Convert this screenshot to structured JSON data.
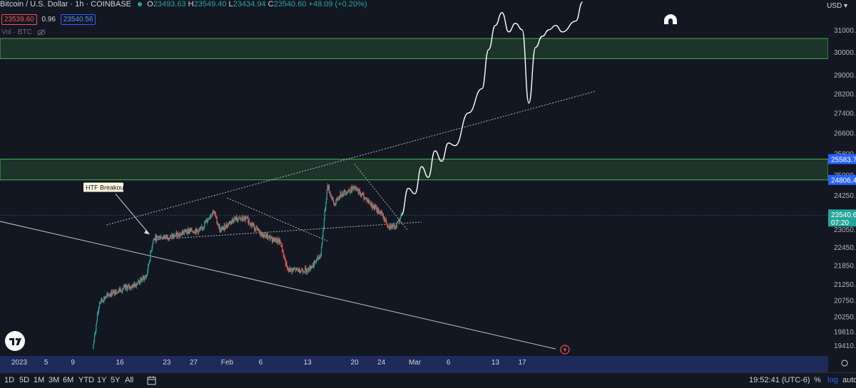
{
  "header": {
    "title": "Bitcoin / U.S. Dollar · 1h · COINBASE",
    "ohlc": [
      {
        "k": "O",
        "v": "23493.63"
      },
      {
        "k": "H",
        "v": "23549.40"
      },
      {
        "k": "L",
        "v": "23434.94"
      },
      {
        "k": "C",
        "v": "23540.60"
      }
    ],
    "change": "+48.09 (+0.20%)",
    "sell_price": "23539.60",
    "spread": "0.96",
    "buy_price": "23540.56",
    "volume_label": "Vol · BTC",
    "currency": "USD"
  },
  "colors": {
    "background": "#131722",
    "up": "#26a69a",
    "down": "#ef5350",
    "zone_fill": "#1e3a2b",
    "zone_border": "#4caf50",
    "axis_bar": "#1e2a5a",
    "price_marker": "#2962ff"
  },
  "chart_data": {
    "type": "line",
    "title": "Bitcoin / U.S. Dollar · 1h · COINBASE",
    "xlabel": "",
    "ylabel": "",
    "x_tick_labels": [
      "2023",
      "5",
      "9",
      "16",
      "23",
      "27",
      "Feb",
      "6",
      "13",
      "20",
      "24",
      "Mar",
      "6",
      "13",
      "17"
    ],
    "y_ticks": [
      31000,
      30000,
      29000,
      28200,
      27400,
      26600,
      25800,
      25000,
      24250,
      23050,
      22450,
      21850,
      21250,
      20750,
      20250,
      19810,
      19410
    ],
    "y_tick_labels": [
      "31000.00",
      "30000.00",
      "29000.00",
      "28200.00",
      "27400.00",
      "26600.00",
      "25800.00",
      "25000.00",
      "24250.00",
      "23050.00",
      "22450.00",
      "21850.00",
      "21250.00",
      "20750.00",
      "20250.00",
      "19810.00",
      "19410.00"
    ],
    "ylim": [
      19100,
      32400
    ],
    "log_scale": true,
    "grid": false,
    "price_labels": [
      {
        "value": 25583.74,
        "text": "25583.74",
        "kind": "zone"
      },
      {
        "value": 24806.47,
        "text": "24806.47",
        "kind": "zone"
      },
      {
        "value": 23540.6,
        "text": "23540.60",
        "kind": "last",
        "countdown": "07:20"
      }
    ],
    "zones": [
      {
        "from": 29700,
        "to": 30600
      },
      {
        "from": 24806.47,
        "to": 25583.74
      }
    ],
    "annotations": [
      {
        "text": "HTF Breakout"
      }
    ],
    "series": [
      {
        "kind": "candles",
        "interval": "1h",
        "anchors": [
          {
            "date": "2023-01-12",
            "price": 19300
          },
          {
            "date": "2023-01-13",
            "price": 20700
          },
          {
            "date": "2023-01-15",
            "price": 21000
          },
          {
            "date": "2023-01-18",
            "price": 21200
          },
          {
            "date": "2023-01-20",
            "price": 21500
          },
          {
            "date": "2023-01-21",
            "price": 22700
          },
          {
            "date": "2023-01-22",
            "price": 22800
          },
          {
            "date": "2023-01-24",
            "price": 22800
          },
          {
            "date": "2023-01-26",
            "price": 23000
          },
          {
            "date": "2023-01-28",
            "price": 23000
          },
          {
            "date": "2023-01-30",
            "price": 23700
          },
          {
            "date": "2023-01-31",
            "price": 23000
          },
          {
            "date": "2023-02-02",
            "price": 23400
          },
          {
            "date": "2023-02-04",
            "price": 23400
          },
          {
            "date": "2023-02-06",
            "price": 22900
          },
          {
            "date": "2023-02-09",
            "price": 22600
          },
          {
            "date": "2023-02-10",
            "price": 21700
          },
          {
            "date": "2023-02-13",
            "price": 21700
          },
          {
            "date": "2023-02-14",
            "price": 21900
          },
          {
            "date": "2023-02-15",
            "price": 22200
          },
          {
            "date": "2023-02-16",
            "price": 24600
          },
          {
            "date": "2023-02-17",
            "price": 23900
          },
          {
            "date": "2023-02-18",
            "price": 24300
          },
          {
            "date": "2023-02-20",
            "price": 24500
          },
          {
            "date": "2023-02-21",
            "price": 24300
          },
          {
            "date": "2023-02-23",
            "price": 23800
          },
          {
            "date": "2023-02-24",
            "price": 23600
          },
          {
            "date": "2023-02-25",
            "price": 23200
          },
          {
            "date": "2023-02-26",
            "price": 23100
          },
          {
            "date": "2023-02-27",
            "price": 23540.6
          }
        ]
      },
      {
        "kind": "projection",
        "anchors": [
          {
            "date": "2023-02-27",
            "price": 23540
          },
          {
            "date": "2023-02-28",
            "price": 24500
          },
          {
            "date": "2023-03-01",
            "price": 24300
          },
          {
            "date": "2023-03-02",
            "price": 25300
          },
          {
            "date": "2023-03-03",
            "price": 24900
          },
          {
            "date": "2023-03-04",
            "price": 25900
          },
          {
            "date": "2023-03-05",
            "price": 25500
          },
          {
            "date": "2023-03-06",
            "price": 26200
          },
          {
            "date": "2023-03-07",
            "price": 26100
          },
          {
            "date": "2023-03-09",
            "price": 27400
          },
          {
            "date": "2023-03-11",
            "price": 28400
          },
          {
            "date": "2023-03-12",
            "price": 30100
          },
          {
            "date": "2023-03-13",
            "price": 31200
          },
          {
            "date": "2023-03-14",
            "price": 31800
          },
          {
            "date": "2023-03-15",
            "price": 30900
          },
          {
            "date": "2023-03-16",
            "price": 31300
          },
          {
            "date": "2023-03-17",
            "price": 31000
          },
          {
            "date": "2023-03-18",
            "price": 27800
          },
          {
            "date": "2023-03-19",
            "price": 30200
          },
          {
            "date": "2023-03-20",
            "price": 30700
          },
          {
            "date": "2023-03-21",
            "price": 31000
          },
          {
            "date": "2023-03-22",
            "price": 31200
          },
          {
            "date": "2023-03-23",
            "price": 30900
          },
          {
            "date": "2023-03-25",
            "price": 31400
          },
          {
            "date": "2023-03-26",
            "price": 32300
          }
        ]
      }
    ],
    "trendlines": [
      {
        "style": "solid",
        "from": {
          "date": "2022-12-24",
          "price": 23600
        },
        "to": {
          "date": "2023-03-22",
          "price": 19300
        }
      },
      {
        "style": "dotted",
        "from": {
          "date": "2023-01-14",
          "price": 23200
        },
        "to": {
          "date": "2023-03-28",
          "price": 28300
        }
      },
      {
        "style": "dotted",
        "from": {
          "date": "2023-01-21",
          "price": 22700
        },
        "to": {
          "date": "2023-03-02",
          "price": 23300
        }
      },
      {
        "style": "dotted",
        "from": {
          "date": "2023-02-01",
          "price": 24150
        },
        "to": {
          "date": "2023-02-16",
          "price": 22650
        }
      },
      {
        "style": "dotted",
        "from": {
          "date": "2023-02-20",
          "price": 25400
        },
        "to": {
          "date": "2023-02-28",
          "price": 23000
        }
      }
    ]
  },
  "bottom_bar": {
    "ranges": [
      "1D",
      "5D",
      "1M",
      "3M",
      "6M",
      "YTD",
      "1Y",
      "5Y",
      "All"
    ],
    "clock": "19:52:41 (UTC-6)",
    "percent": "%",
    "log": "log",
    "auto": "auto"
  }
}
